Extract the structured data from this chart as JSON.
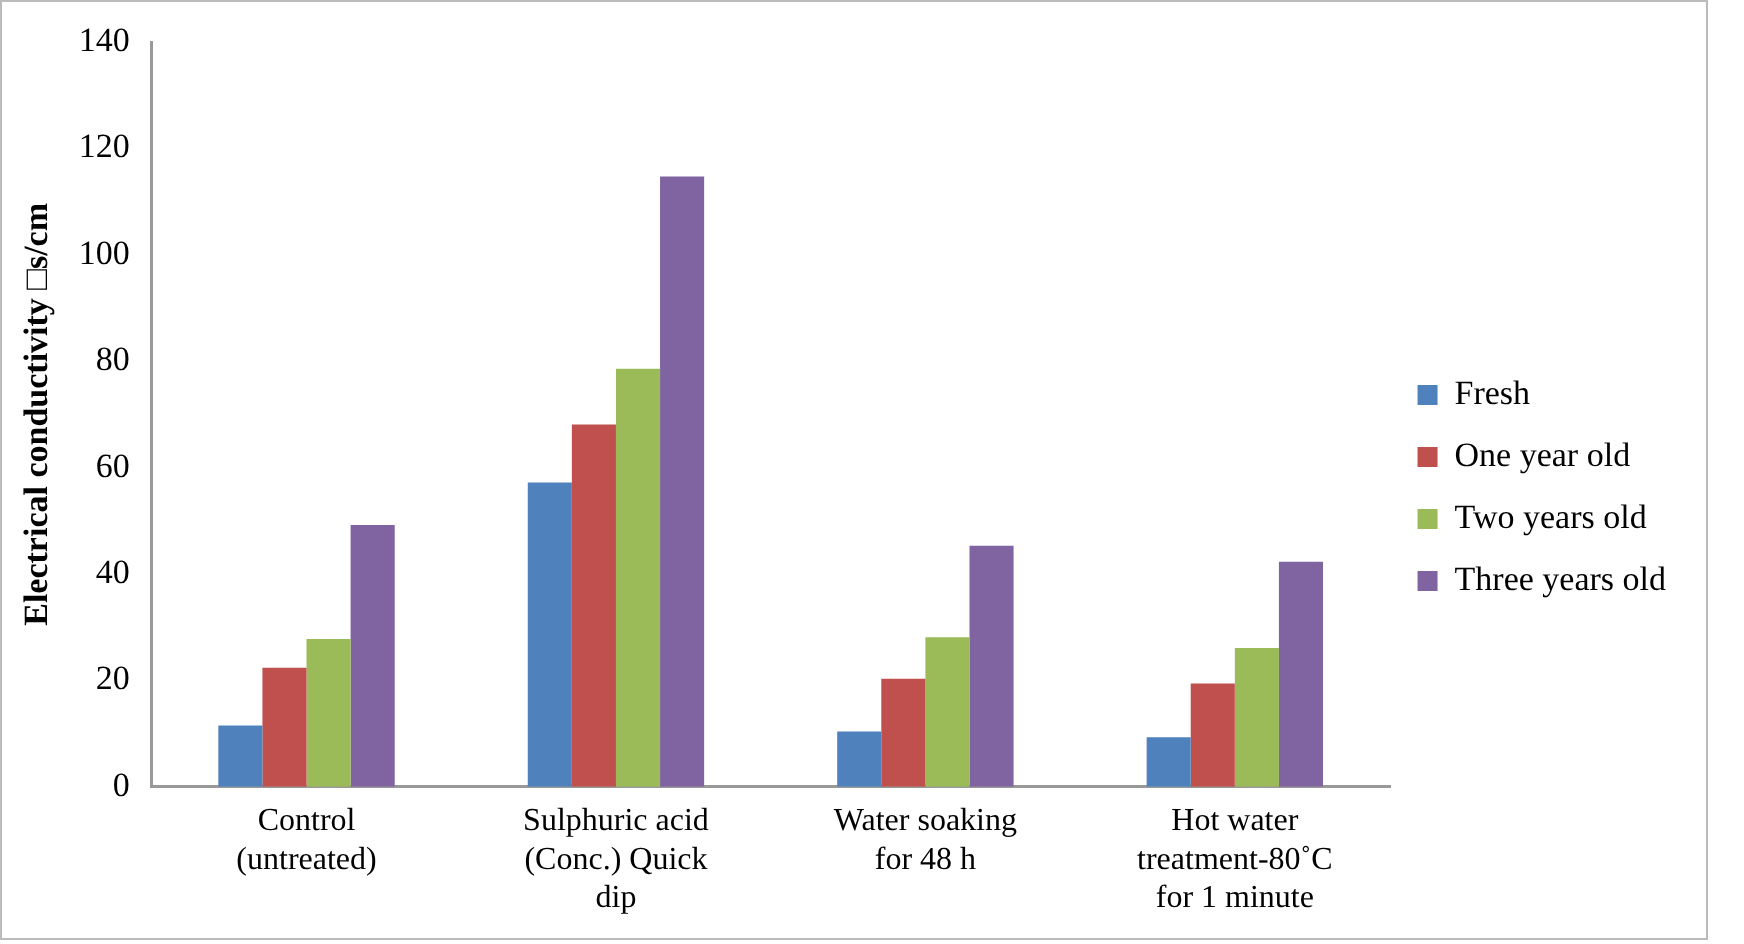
{
  "chart_data": {
    "type": "bar",
    "ylabel": "Electrical conductivity □s/cm",
    "categories": [
      "Control (untreated)",
      "Sulphuric acid (Conc.) Quick dip",
      "Water soaking for 48 h",
      "Hot water treatment-80˚C for 1 minute"
    ],
    "series": [
      {
        "name": "Fresh",
        "color": "#4f81bd",
        "values": [
          11.5,
          57.2,
          10.4,
          9.3
        ]
      },
      {
        "name": "One year old",
        "color": "#c0504d",
        "values": [
          22.4,
          68.1,
          20.3,
          19.4
        ]
      },
      {
        "name": "Two years old",
        "color": "#9bbb59",
        "values": [
          27.8,
          78.6,
          28.1,
          26.1
        ]
      },
      {
        "name": "Three years old",
        "color": "#8064a2",
        "values": [
          49.2,
          114.7,
          45.3,
          42.3
        ]
      }
    ],
    "ylim": [
      0,
      140
    ],
    "yticks": [
      0,
      20,
      40,
      60,
      80,
      100,
      120,
      140
    ],
    "grid": false,
    "legend": "right"
  }
}
